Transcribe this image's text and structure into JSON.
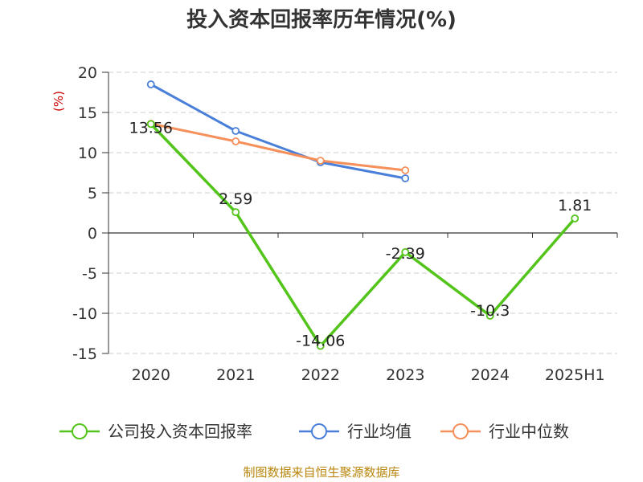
{
  "chart_data": {
    "type": "line",
    "title": "投入资本回报率历年情况(%)",
    "ylabel": "(%)",
    "xlabel": "",
    "categories": [
      "2020",
      "2021",
      "2022",
      "2023",
      "2024",
      "2025H1"
    ],
    "ylim": [
      -15,
      20
    ],
    "yticks": [
      20,
      15,
      10,
      5,
      0,
      -5,
      -10,
      -15
    ],
    "grid": true,
    "legend_position": "bottom",
    "series": [
      {
        "name": "公司投入资本回报率",
        "color": "#52c41a",
        "values": [
          13.56,
          2.59,
          -14.06,
          -2.39,
          -10.3,
          1.81
        ],
        "labels": [
          "13.56",
          "2.59",
          "-14.06",
          "-2.39",
          "-10.3",
          "1.81"
        ]
      },
      {
        "name": "行业均值",
        "color": "#4a7fd9",
        "values": [
          18.5,
          12.7,
          8.8,
          6.8,
          null,
          null
        ]
      },
      {
        "name": "行业中位数",
        "color": "#f5905a",
        "values": [
          13.6,
          11.4,
          9.0,
          7.8,
          null,
          null
        ]
      }
    ]
  },
  "footer": {
    "source": "制图数据来自恒生聚源数据库"
  }
}
